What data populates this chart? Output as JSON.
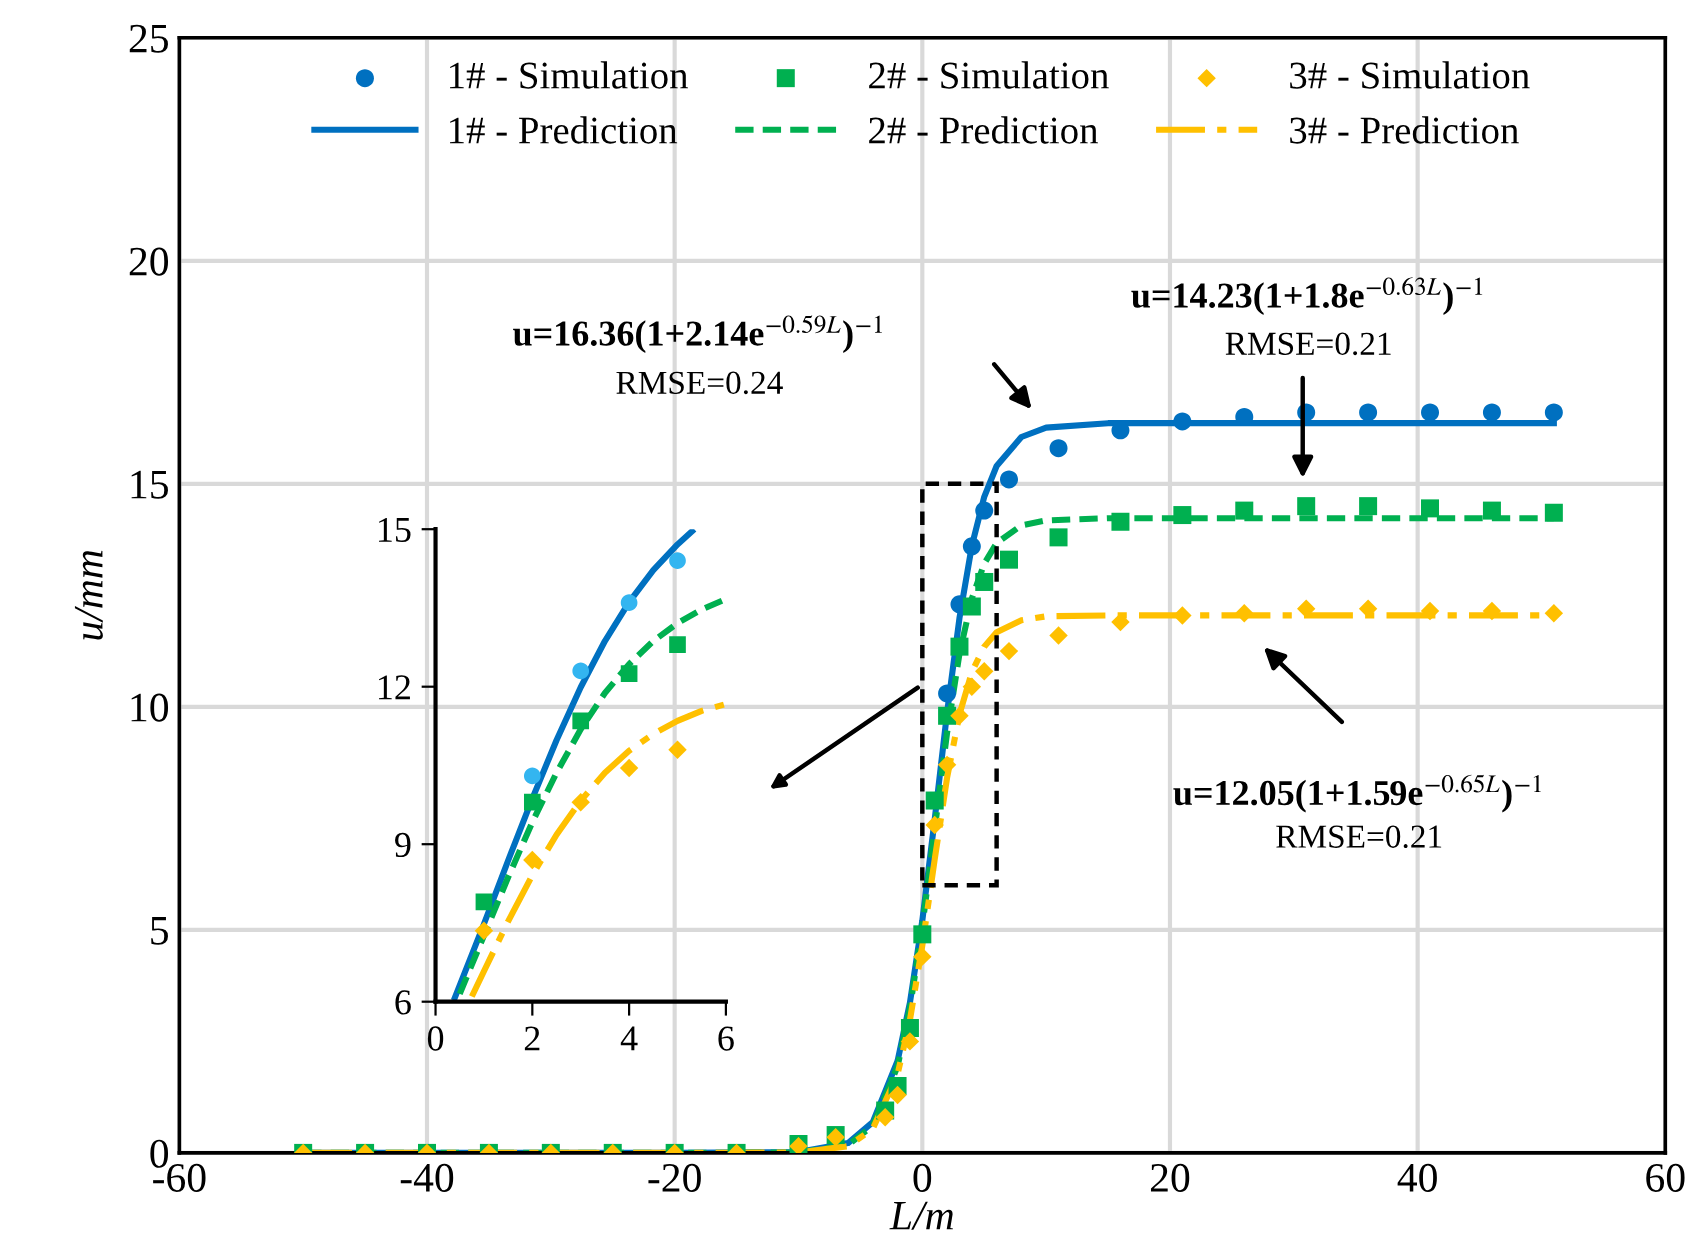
{
  "chart_data": [
    {
      "type": "scatter",
      "xlabel": "L/m",
      "ylabel": "u/mm",
      "xlim": [
        -60,
        60
      ],
      "xticks": [
        -60,
        -40,
        -20,
        0,
        20,
        40,
        60
      ],
      "ylim": [
        0,
        25
      ],
      "yticks": [
        0,
        5,
        10,
        15,
        20,
        25
      ],
      "grid": true,
      "legend": "top",
      "series": [
        {
          "name": "1# - Simulation",
          "type": "scatter",
          "marker": "circle",
          "color": "#0070c0",
          "x": [
            2,
            3,
            4,
            5,
            7,
            11,
            16,
            21,
            26,
            31,
            36,
            41,
            46,
            51
          ],
          "values": [
            10.3,
            12.3,
            13.6,
            14.4,
            15.1,
            15.8,
            16.2,
            16.4,
            16.5,
            16.6,
            16.6,
            16.6,
            16.6,
            16.6
          ]
        },
        {
          "name": "1# - Prediction",
          "type": "line",
          "line_style": "solid",
          "color": "#0070c0",
          "x": [
            -50,
            -20,
            -10,
            -6,
            -4,
            -2,
            -1,
            0,
            1,
            2,
            3,
            4,
            5,
            6,
            8,
            10,
            15,
            51
          ],
          "values": [
            0,
            0,
            0.02,
            0.22,
            0.69,
            2.06,
            3.37,
            5.21,
            7.48,
            9.87,
            11.99,
            13.61,
            14.71,
            15.4,
            16.05,
            16.26,
            16.36,
            16.36
          ]
        },
        {
          "name": "2# - Simulation",
          "type": "scatter",
          "marker": "square",
          "color": "#00b050",
          "x": [
            -50,
            -45,
            -40,
            -35,
            -30,
            -25,
            -20,
            -15,
            -10,
            -7,
            -3,
            -2,
            -1,
            0,
            1,
            2,
            3,
            4,
            5,
            7,
            11,
            16,
            21,
            26,
            31,
            36,
            41,
            46,
            51
          ],
          "values": [
            0,
            0,
            0,
            0,
            0,
            0,
            0,
            0,
            0.2,
            0.4,
            0.95,
            1.5,
            2.8,
            4.9,
            7.9,
            9.8,
            11.35,
            12.25,
            12.8,
            13.3,
            13.8,
            14.15,
            14.3,
            14.4,
            14.5,
            14.5,
            14.45,
            14.4,
            14.35
          ]
        },
        {
          "name": "2# - Prediction",
          "type": "line",
          "line_style": "dashed",
          "color": "#00b050",
          "x": [
            -50,
            -20,
            -10,
            -6,
            -4,
            -2,
            -1,
            0,
            1,
            2,
            3,
            4,
            5,
            6,
            8,
            10,
            15,
            51
          ],
          "values": [
            0,
            0,
            0.01,
            0.18,
            0.61,
            1.94,
            3.25,
            5.08,
            7.26,
            9.42,
            11.19,
            12.43,
            13.21,
            13.67,
            14.07,
            14.18,
            14.23,
            14.23
          ]
        },
        {
          "name": "3# - Simulation",
          "type": "scatter",
          "marker": "diamond",
          "color": "#ffc000",
          "x": [
            -50,
            -45,
            -40,
            -35,
            -30,
            -25,
            -20,
            -15,
            -10,
            -7,
            -3,
            -2,
            -1,
            0,
            1,
            2,
            3,
            4,
            5,
            7,
            11,
            16,
            21,
            26,
            31,
            36,
            41,
            46,
            51
          ],
          "values": [
            0,
            0,
            0,
            0,
            0,
            0,
            0,
            0,
            0.15,
            0.35,
            0.8,
            1.3,
            2.5,
            4.4,
            7.35,
            8.7,
            9.8,
            10.45,
            10.8,
            11.25,
            11.6,
            11.9,
            12.05,
            12.1,
            12.2,
            12.2,
            12.15,
            12.15,
            12.1
          ]
        },
        {
          "name": "3# - Prediction",
          "type": "line",
          "line_style": "dashdot",
          "color": "#ffc000",
          "x": [
            -50,
            -20,
            -10,
            -6,
            -4,
            -2,
            -1,
            0,
            1,
            2,
            3,
            4,
            5,
            6,
            8,
            10,
            15,
            51
          ],
          "values": [
            0,
            0,
            0.01,
            0.15,
            0.54,
            1.76,
            2.98,
            4.65,
            6.58,
            8.41,
            9.83,
            10.78,
            11.35,
            11.67,
            11.94,
            12.03,
            12.05,
            12.05
          ]
        }
      ],
      "annotations": [
        "u=16.36(1+2.14e$^{−0.59L}$)$^{−1}$",
        "RMSE=0.24",
        "u=14.23(1+1.8e$^{−0.63L}$)$^{−1}$",
        "RMSE=0.21",
        "u=12.05(1+1.59e$^{−0.65L}$)$^{−1}$",
        "RMSE=0.21"
      ]
    },
    {
      "type": "scatter",
      "xlim": [
        0,
        6
      ],
      "xticks": [
        0,
        2,
        4,
        6
      ],
      "ylim": [
        6,
        15
      ],
      "yticks": [
        6,
        9,
        12,
        15
      ],
      "series": [
        {
          "type": "scatter",
          "marker": "circle",
          "color": "#33b5f0",
          "x": [
            2,
            3,
            4,
            5
          ],
          "values": [
            10.3,
            12.3,
            13.6,
            14.4
          ]
        },
        {
          "type": "line",
          "line_style": "solid",
          "color": "#0070c0",
          "x": [
            0.4,
            1,
            1.5,
            2,
            2.5,
            3,
            3.5,
            4,
            4.5,
            5,
            5.3
          ],
          "values": [
            6.08,
            7.48,
            8.69,
            9.87,
            10.98,
            11.99,
            12.87,
            13.61,
            14.22,
            14.71,
            14.96
          ]
        },
        {
          "type": "scatter",
          "marker": "square",
          "color": "#00b050",
          "x": [
            1,
            2,
            3,
            4,
            5
          ],
          "values": [
            7.9,
            9.8,
            11.35,
            12.25,
            12.8
          ]
        },
        {
          "type": "line",
          "line_style": "dashed",
          "color": "#00b050",
          "x": [
            0.5,
            1,
            1.5,
            2,
            2.5,
            3,
            3.5,
            4,
            4.5,
            5,
            5.5,
            6
          ],
          "values": [
            6.15,
            7.26,
            8.37,
            9.42,
            10.36,
            11.19,
            11.88,
            12.43,
            12.87,
            13.21,
            13.47,
            13.67
          ]
        },
        {
          "type": "scatter",
          "marker": "diamond",
          "color": "#ffc000",
          "x": [
            1,
            2,
            3,
            4,
            5
          ],
          "values": [
            7.35,
            8.7,
            9.8,
            10.45,
            10.8
          ]
        },
        {
          "type": "line",
          "line_style": "dashdot",
          "color": "#ffc000",
          "x": [
            0.75,
            1,
            1.5,
            2,
            2.5,
            3,
            3.5,
            4,
            4.5,
            5,
            5.5,
            6
          ],
          "values": [
            6.1,
            6.58,
            7.53,
            8.41,
            9.18,
            9.83,
            10.36,
            10.78,
            11.1,
            11.35,
            11.54,
            11.67
          ]
        }
      ]
    }
  ]
}
